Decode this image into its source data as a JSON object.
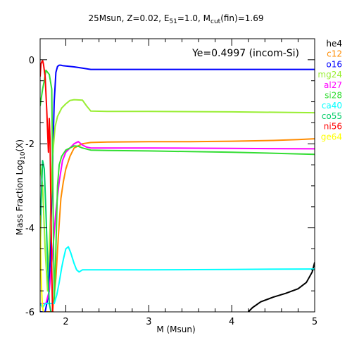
{
  "chart_data": {
    "type": "line",
    "title_parts": [
      {
        "t": "25Msun, Z=0.02, E"
      },
      {
        "t": "51",
        "sub": true
      },
      {
        "t": "=1.0, M"
      },
      {
        "t": "cut",
        "sub": true
      },
      {
        "t": "(fin)=1.69"
      }
    ],
    "xlabel": "M (Msun)",
    "ylabel_parts": [
      {
        "t": "Mass Fraction Log"
      },
      {
        "t": "10",
        "sub": true
      },
      {
        "t": "(X)"
      }
    ],
    "annotation": "Ye=0.4997 (incom-Si)",
    "xlim": [
      1.69,
      5.0
    ],
    "ylim": [
      -6,
      0.5
    ],
    "xticks": [
      2,
      3,
      4,
      5
    ],
    "yticks": [
      0,
      -2,
      -4,
      -6
    ],
    "grid": false,
    "legend_position": "right-outside",
    "series": [
      {
        "name": "he4",
        "color": "#000000",
        "x": [
          4.2,
          4.25,
          4.35,
          4.5,
          4.65,
          4.8,
          4.9,
          4.97,
          5.0
        ],
        "y": [
          -6.0,
          -5.9,
          -5.76,
          -5.65,
          -5.56,
          -5.45,
          -5.3,
          -5.05,
          -4.82
        ]
      },
      {
        "name": "c12",
        "color": "#ff8c00",
        "x": [
          1.69,
          1.72,
          1.76,
          1.8,
          1.84,
          1.88,
          1.91,
          1.94,
          1.97,
          2.0,
          2.05,
          2.1,
          2.2,
          2.3,
          2.5,
          3.0,
          3.5,
          4.0,
          4.5,
          4.8,
          5.0
        ],
        "y": [
          -6.0,
          -6.0,
          -6.0,
          -6.0,
          -6.0,
          -5.2,
          -4.2,
          -3.3,
          -2.9,
          -2.6,
          -2.3,
          -2.1,
          -2.0,
          -1.97,
          -1.96,
          -1.95,
          -1.95,
          -1.94,
          -1.92,
          -1.9,
          -1.88
        ]
      },
      {
        "name": "o16",
        "color": "#0000ff",
        "x": [
          1.69,
          1.75,
          1.8,
          1.82,
          1.84,
          1.86,
          1.88,
          1.9,
          1.92,
          1.94,
          1.96,
          2.0,
          2.1,
          2.2,
          2.3,
          3.0,
          4.0,
          5.0
        ],
        "y": [
          -6.0,
          -6.0,
          -5.5,
          -4.0,
          -2.5,
          -1.0,
          -0.3,
          -0.16,
          -0.13,
          -0.13,
          -0.14,
          -0.15,
          -0.17,
          -0.2,
          -0.23,
          -0.23,
          -0.23,
          -0.23
        ]
      },
      {
        "name": "mg24",
        "color": "#99ee33",
        "x": [
          1.69,
          1.72,
          1.75,
          1.78,
          1.81,
          1.84,
          1.87,
          1.9,
          1.95,
          2.0,
          2.05,
          2.1,
          2.2,
          2.25,
          2.3,
          2.5,
          3.0,
          4.0,
          5.0
        ],
        "y": [
          -2.5,
          -3.0,
          -4.5,
          -5.5,
          -4.0,
          -2.3,
          -1.6,
          -1.35,
          -1.15,
          -1.05,
          -0.97,
          -0.95,
          -0.96,
          -1.1,
          -1.22,
          -1.23,
          -1.23,
          -1.24,
          -1.26
        ]
      },
      {
        "name": "al27",
        "color": "#ff00ff",
        "x": [
          1.69,
          1.72,
          1.76,
          1.8,
          1.84,
          1.88,
          1.92,
          1.96,
          2.0,
          2.05,
          2.1,
          2.15,
          2.2,
          2.25,
          2.3,
          2.5,
          3.0,
          4.0,
          5.0
        ],
        "y": [
          -5.8,
          -5.8,
          -5.8,
          -5.5,
          -4.6,
          -3.6,
          -2.9,
          -2.4,
          -2.2,
          -2.1,
          -2.0,
          -1.95,
          -2.03,
          -2.08,
          -2.1,
          -2.1,
          -2.1,
          -2.11,
          -2.12
        ]
      },
      {
        "name": "si28",
        "color": "#33dd33",
        "x": [
          1.69,
          1.72,
          1.74,
          1.76,
          1.8,
          1.83,
          1.86,
          1.88,
          1.9,
          1.92,
          1.95,
          2.0,
          2.05,
          2.1,
          2.15,
          2.2,
          2.3,
          2.5,
          3.0,
          4.0,
          5.0
        ],
        "y": [
          -1.1,
          -0.7,
          -0.5,
          -0.25,
          -0.35,
          -0.7,
          -5.8,
          -4.5,
          -3.0,
          -2.5,
          -2.3,
          -2.15,
          -2.1,
          -2.05,
          -2.06,
          -2.1,
          -2.15,
          -2.16,
          -2.17,
          -2.2,
          -2.25
        ]
      },
      {
        "name": "ca40",
        "color": "#00ffff",
        "x": [
          1.69,
          1.72,
          1.75,
          1.78,
          1.8,
          1.83,
          1.86,
          1.89,
          1.92,
          1.95,
          1.97,
          2.0,
          2.03,
          2.06,
          2.1,
          2.13,
          2.16,
          2.2,
          2.3,
          2.5,
          3.0,
          4.0,
          5.0
        ],
        "y": [
          -5.8,
          -5.9,
          -5.8,
          -5.8,
          -5.8,
          -5.8,
          -5.8,
          -5.6,
          -5.3,
          -4.95,
          -4.75,
          -4.5,
          -4.45,
          -4.6,
          -4.85,
          -5.0,
          -5.05,
          -5.0,
          -5.0,
          -5.0,
          -5.0,
          -4.99,
          -4.98
        ]
      },
      {
        "name": "co55",
        "color": "#00cc66",
        "x": [
          1.69,
          1.7,
          1.72,
          1.74,
          1.76,
          1.78,
          1.8,
          1.82
        ],
        "y": [
          -5.0,
          -3.5,
          -2.4,
          -2.6,
          -3.6,
          -4.8,
          -5.8,
          -6.0
        ]
      },
      {
        "name": "ni56",
        "color": "#ff0000",
        "x": [
          1.69,
          1.7,
          1.71,
          1.72,
          1.73,
          1.75,
          1.77,
          1.79,
          1.8,
          1.81,
          1.82,
          1.83,
          1.84,
          1.85
        ],
        "y": [
          -0.4,
          -0.1,
          -0.05,
          -0.02,
          -0.1,
          -0.4,
          -1.2,
          -2.2,
          -1.4,
          -1.9,
          -3.5,
          -5.0,
          -6.0,
          -6.0
        ]
      },
      {
        "name": "ge64",
        "color": "#ffff00",
        "x": [
          1.69,
          1.7,
          1.71,
          1.72,
          1.73,
          1.74
        ],
        "y": [
          -3.7,
          -5.0,
          -5.6,
          -5.9,
          -6.0,
          -6.0
        ]
      }
    ]
  }
}
